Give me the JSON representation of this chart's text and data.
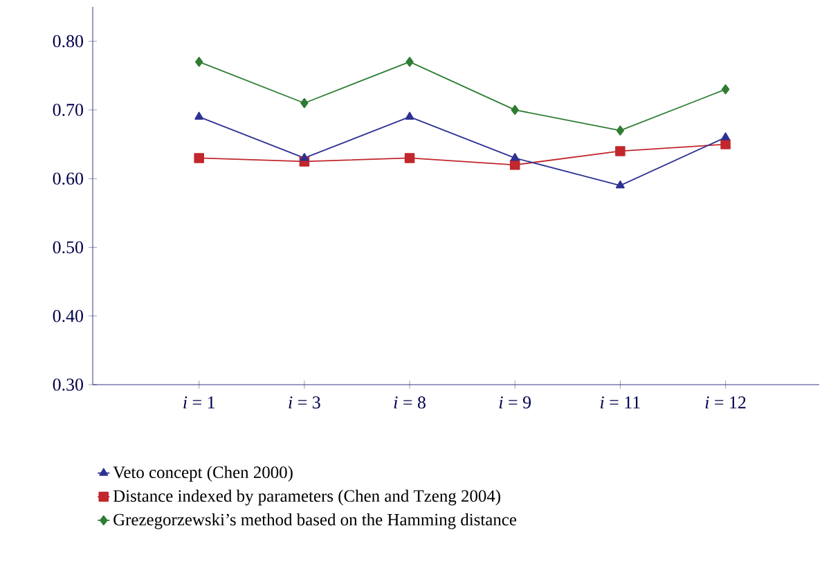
{
  "chart_data": {
    "type": "line",
    "categories": [
      "*i* = 1",
      "*i* = 3",
      "*i* = 8",
      "*i* = 9",
      "*i* = 11",
      "*i* = 12"
    ],
    "series": [
      {
        "name": "Veto concept (Chen 2000)",
        "color": "#2e3192",
        "marker": "triangle",
        "values": [
          0.69,
          0.63,
          0.69,
          0.63,
          0.59,
          0.66
        ]
      },
      {
        "name": "Distance indexed by parameters (Chen and Tzeng 2004)",
        "color": "#c1272d",
        "marker": "square",
        "values": [
          0.63,
          0.625,
          0.63,
          0.62,
          0.64,
          0.65
        ]
      },
      {
        "name": "Grezegorzewski’s method based on the Hamming distance",
        "color": "#2e7d32",
        "marker": "diamond",
        "values": [
          0.77,
          0.71,
          0.77,
          0.7,
          0.67,
          0.73
        ]
      }
    ],
    "ylim": [
      0.3,
      0.85
    ],
    "yticks": [
      {
        "value": 0.3,
        "label": "0.30"
      },
      {
        "value": 0.4,
        "label": "0.40"
      },
      {
        "value": 0.5,
        "label": "0.50"
      },
      {
        "value": 0.6,
        "label": "0.60"
      },
      {
        "value": 0.7,
        "label": "0.70"
      },
      {
        "value": 0.8,
        "label": "0.80"
      }
    ],
    "grid": false,
    "legend": "bottom",
    "line_style": "solid"
  }
}
